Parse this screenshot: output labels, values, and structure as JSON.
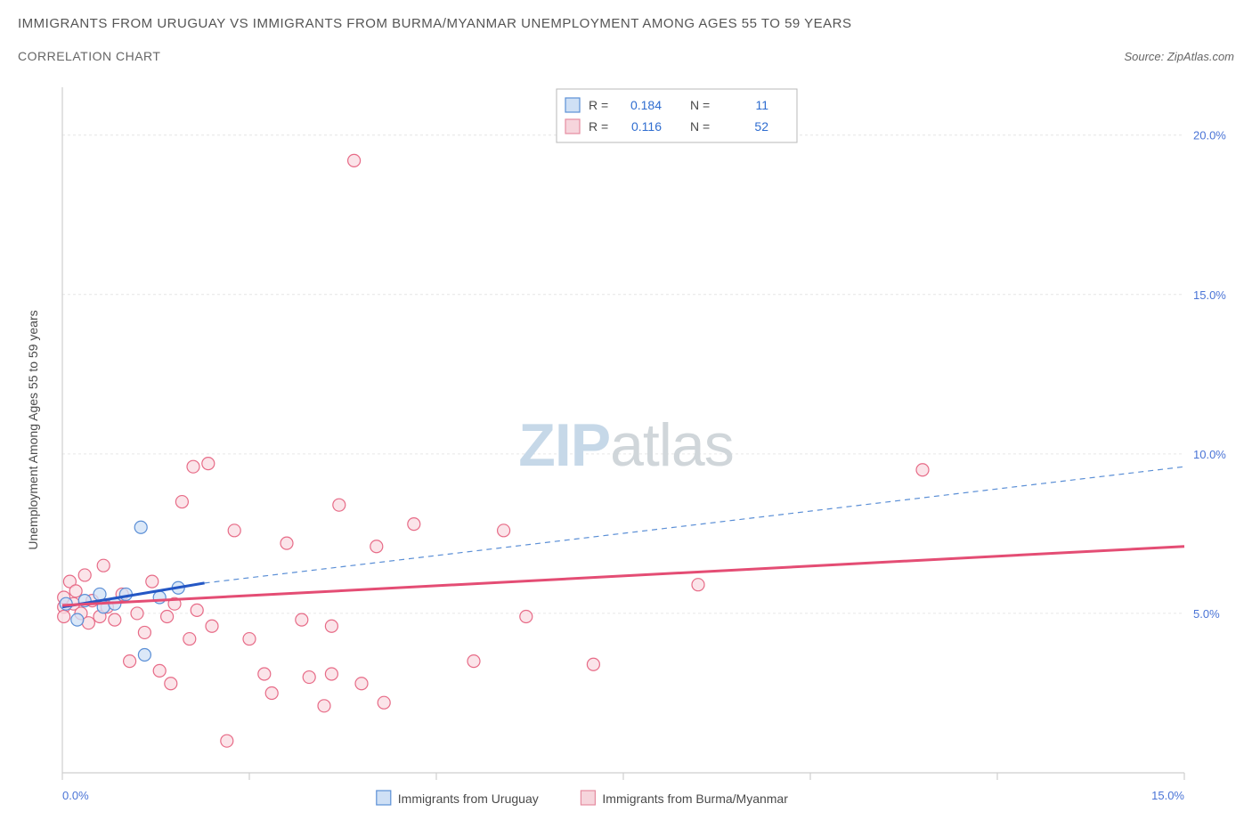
{
  "title": "IMMIGRANTS FROM URUGUAY VS IMMIGRANTS FROM BURMA/MYANMAR UNEMPLOYMENT AMONG AGES 55 TO 59 YEARS",
  "subtitle": "CORRELATION CHART",
  "source_label": "Source: ZipAtlas.com",
  "watermark_zip": "ZIP",
  "watermark_atlas": "atlas",
  "chart": {
    "type": "scatter",
    "ylabel": "Unemployment Among Ages 55 to 59 years",
    "xlim": [
      0,
      15
    ],
    "ylim": [
      0,
      21.5
    ],
    "xtick_positions": [
      0,
      2.5,
      5,
      7.5,
      10,
      12.5,
      15
    ],
    "xtick_labels": [
      "0.0%",
      "",
      "",
      "",
      "",
      "",
      "15.0%"
    ],
    "ytick_positions": [
      5,
      10,
      15,
      20
    ],
    "ytick_labels": [
      "5.0%",
      "10.0%",
      "15.0%",
      "20.0%"
    ],
    "grid_color": "#e6e6e6",
    "axis_color": "#cfcfcf",
    "tick_label_color": "#4a74d6",
    "plot_bg": "#ffffff",
    "marker_radius": 7,
    "marker_stroke_width": 1.2,
    "ylabel_color": "#4a4a4a",
    "ylabel_fontsize": 14,
    "label_fontsize": 13
  },
  "stats_box": {
    "border_color": "#b8b8b8",
    "bg": "#ffffff",
    "text_color": "#4a4a4a",
    "value_color": "#2f6dd0",
    "rows": [
      {
        "swatch_fill": "#cfe0f5",
        "swatch_stroke": "#5b8fd6",
        "r_label": "R =",
        "r_val": "0.184",
        "n_label": "N =",
        "n_val": "11"
      },
      {
        "swatch_fill": "#f6d5dc",
        "swatch_stroke": "#e58ca0",
        "r_label": "R =",
        "r_val": "0.116",
        "n_label": "N =",
        "n_val": "52"
      }
    ]
  },
  "legend": {
    "items": [
      {
        "swatch_fill": "#cfe0f5",
        "swatch_stroke": "#5b8fd6",
        "label": "Immigrants from Uruguay"
      },
      {
        "swatch_fill": "#f6d5dc",
        "swatch_stroke": "#e58ca0",
        "label": "Immigrants from Burma/Myanmar"
      }
    ],
    "text_color": "#4a4a4a"
  },
  "series": [
    {
      "name": "uruguay",
      "color_fill": "#cfe0f5",
      "color_stroke": "#5b8fd6",
      "trend": {
        "x1": 0,
        "y1": 5.2,
        "x2": 1.9,
        "y2": 5.95,
        "color": "#2457c5",
        "width": 3,
        "dash": "none"
      },
      "trend_ext": {
        "x1": 1.9,
        "y1": 5.95,
        "x2": 15,
        "y2": 9.6,
        "color": "#5b8fd6",
        "width": 1.2,
        "dash": "6,5"
      },
      "points": [
        [
          0.05,
          5.3
        ],
        [
          0.2,
          4.8
        ],
        [
          0.3,
          5.4
        ],
        [
          0.5,
          5.6
        ],
        [
          0.55,
          5.2
        ],
        [
          0.7,
          5.3
        ],
        [
          0.85,
          5.6
        ],
        [
          1.05,
          7.7
        ],
        [
          1.1,
          3.7
        ],
        [
          1.3,
          5.5
        ],
        [
          1.55,
          5.8
        ]
      ]
    },
    {
      "name": "burma",
      "color_fill": "#f9dbe2",
      "color_stroke": "#e76b87",
      "trend": {
        "x1": 0,
        "y1": 5.25,
        "x2": 15,
        "y2": 7.1,
        "color": "#e44d74",
        "width": 3,
        "dash": "none"
      },
      "points": [
        [
          0.02,
          5.2
        ],
        [
          0.02,
          4.9
        ],
        [
          0.02,
          5.5
        ],
        [
          0.1,
          6.0
        ],
        [
          0.15,
          5.3
        ],
        [
          0.18,
          5.7
        ],
        [
          0.25,
          5.0
        ],
        [
          0.3,
          6.2
        ],
        [
          0.35,
          4.7
        ],
        [
          0.4,
          5.4
        ],
        [
          0.5,
          4.9
        ],
        [
          0.55,
          6.5
        ],
        [
          0.6,
          5.2
        ],
        [
          0.7,
          4.8
        ],
        [
          0.8,
          5.6
        ],
        [
          0.9,
          3.5
        ],
        [
          1.0,
          5.0
        ],
        [
          1.1,
          4.4
        ],
        [
          1.2,
          6.0
        ],
        [
          1.3,
          3.2
        ],
        [
          1.4,
          4.9
        ],
        [
          1.45,
          2.8
        ],
        [
          1.5,
          5.3
        ],
        [
          1.6,
          8.5
        ],
        [
          1.7,
          4.2
        ],
        [
          1.75,
          9.6
        ],
        [
          1.8,
          5.1
        ],
        [
          1.95,
          9.7
        ],
        [
          2.0,
          4.6
        ],
        [
          2.2,
          1.0
        ],
        [
          2.3,
          7.6
        ],
        [
          2.5,
          4.2
        ],
        [
          2.7,
          3.1
        ],
        [
          2.8,
          2.5
        ],
        [
          3.0,
          7.2
        ],
        [
          3.2,
          4.8
        ],
        [
          3.3,
          3.0
        ],
        [
          3.5,
          2.1
        ],
        [
          3.6,
          4.6
        ],
        [
          3.6,
          3.1
        ],
        [
          3.7,
          8.4
        ],
        [
          3.9,
          19.2
        ],
        [
          4.0,
          2.8
        ],
        [
          4.2,
          7.1
        ],
        [
          4.3,
          2.2
        ],
        [
          4.7,
          7.8
        ],
        [
          5.5,
          3.5
        ],
        [
          5.9,
          7.6
        ],
        [
          6.2,
          4.9
        ],
        [
          7.1,
          3.4
        ],
        [
          8.5,
          5.9
        ],
        [
          11.5,
          9.5
        ]
      ]
    }
  ]
}
